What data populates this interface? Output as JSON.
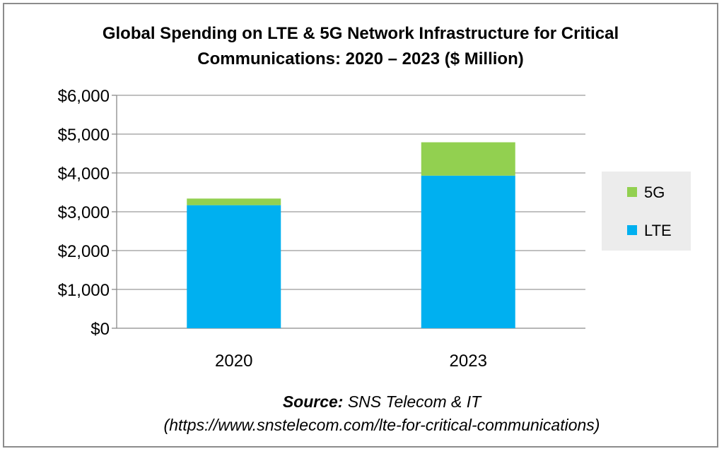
{
  "chart_data": {
    "type": "bar",
    "stacked": true,
    "title": "Global Spending on LTE & 5G Network Infrastructure for Critical Communications: 2020 – 2023 ($ Million)",
    "title_lines": [
      "Global Spending on LTE & 5G Network Infrastructure for Critical",
      "Communications: 2020 – 2023 ($ Million)"
    ],
    "categories": [
      "2020",
      "2023"
    ],
    "series": [
      {
        "name": "LTE",
        "color": "#00b0f0",
        "values": [
          3170,
          3930
        ]
      },
      {
        "name": "5G",
        "color": "#92d050",
        "values": [
          170,
          860
        ]
      }
    ],
    "yticks": [
      "$0",
      "$1,000",
      "$2,000",
      "$3,000",
      "$4,000",
      "$5,000",
      "$6,000"
    ],
    "ylim": [
      0,
      6000
    ],
    "xlabel": "",
    "ylabel": "",
    "grid": true,
    "legend": [
      "5G",
      "LTE"
    ],
    "legend_position": "right"
  },
  "source": {
    "label": "Source:",
    "text": "SNS Telecom & IT",
    "url": "(https://www.snstelecom.com/lte-for-critical-communications)"
  }
}
